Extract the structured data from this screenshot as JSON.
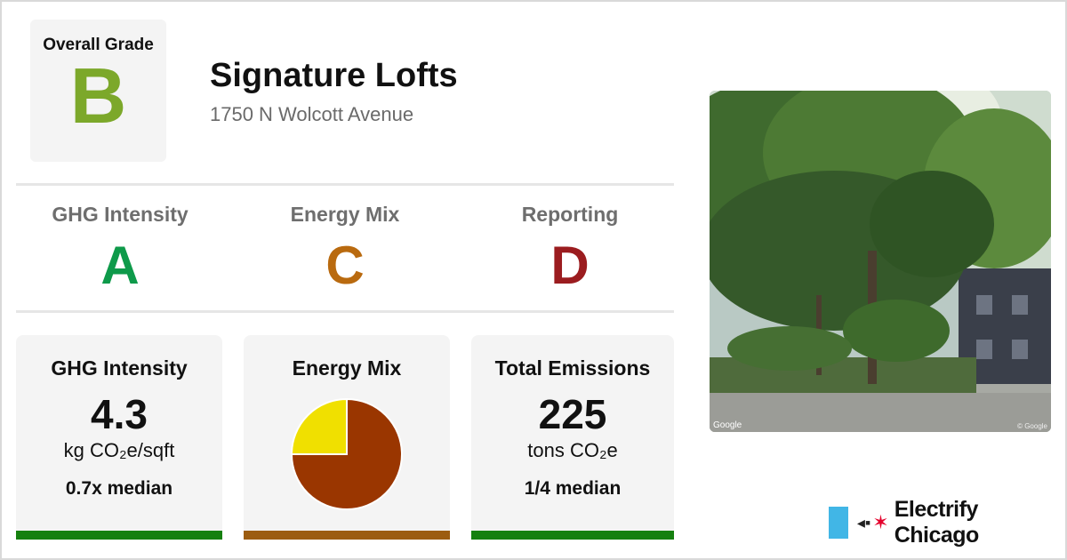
{
  "overall": {
    "label": "Overall Grade",
    "grade": "B",
    "color": "#7ca82a"
  },
  "building": {
    "name": "Signature Lofts",
    "address": "1750 N Wolcott Avenue"
  },
  "grades": [
    {
      "label": "GHG Intensity",
      "grade": "A",
      "color": "#0e9a4a"
    },
    {
      "label": "Energy Mix",
      "grade": "C",
      "color": "#b96a0f"
    },
    {
      "label": "Reporting",
      "grade": "D",
      "color": "#9b1c1f"
    }
  ],
  "cards": {
    "ghg": {
      "title": "GHG Intensity",
      "value": "4.3",
      "unit": "kg CO₂e/sqft",
      "median": "0.7x median",
      "bar_color": "#15800f"
    },
    "mix": {
      "title": "Energy Mix",
      "bar_color": "#9c5c10"
    },
    "total": {
      "title": "Total Emissions",
      "value": "225",
      "unit": "tons CO₂e",
      "median": "1/4 median",
      "bar_color": "#15800f"
    }
  },
  "chart_data": {
    "type": "pie",
    "title": "Energy Mix",
    "slices": [
      {
        "value": 75,
        "color": "#9a3600"
      },
      {
        "value": 25,
        "color": "#f0e000"
      }
    ]
  },
  "photo": {
    "watermark": "Google",
    "copyright": "© Google"
  },
  "brand": {
    "name": "Electrify Chicago",
    "flag_color": "#41b6e6",
    "star_color": "#e4002b"
  }
}
